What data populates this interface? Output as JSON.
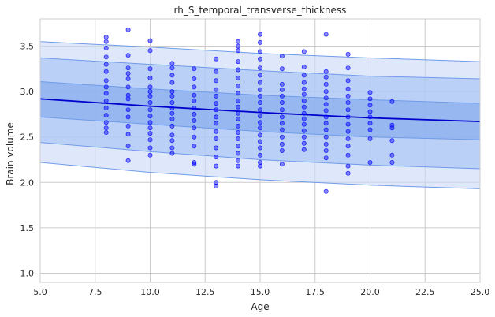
{
  "chart_data": {
    "type": "scatter",
    "title": "rh_S_temporal_transverse_thickness",
    "xlabel": "Age",
    "ylabel": "Brain volume",
    "xlim": [
      5.0,
      25.0
    ],
    "ylim": [
      0.9,
      3.8
    ],
    "x_ticks": [
      "5.0",
      "7.5",
      "10.0",
      "12.5",
      "15.0",
      "17.5",
      "20.0",
      "22.5",
      "25.0"
    ],
    "y_ticks": [
      "1.0",
      "1.5",
      "2.0",
      "2.5",
      "3.0",
      "3.5"
    ],
    "grid": true,
    "colors": {
      "points": "#0000ff",
      "mean_line": "#0000cc",
      "band_outer": "#c9d9f8",
      "band_middle": "#a4c0f4",
      "band_inner": "#7ea6ee",
      "band_edge": "#6f9be8",
      "grid": "#cccccc"
    },
    "mean_line": {
      "x": [
        5.0,
        10.0,
        15.0,
        20.0,
        25.0
      ],
      "y": [
        2.92,
        2.84,
        2.77,
        2.71,
        2.67
      ]
    },
    "bands": [
      {
        "level": "outer",
        "x": [
          5.0,
          10.0,
          15.0,
          20.0,
          25.0
        ],
        "lower": [
          2.22,
          2.11,
          2.03,
          1.97,
          1.93
        ],
        "upper": [
          3.55,
          3.49,
          3.42,
          3.37,
          3.33
        ]
      },
      {
        "level": "middle",
        "x": [
          5.0,
          10.0,
          15.0,
          20.0,
          25.0
        ],
        "lower": [
          2.44,
          2.34,
          2.25,
          2.19,
          2.15
        ],
        "upper": [
          3.37,
          3.3,
          3.23,
          3.17,
          3.14
        ]
      },
      {
        "level": "inner",
        "x": [
          5.0,
          10.0,
          15.0,
          20.0,
          25.0
        ],
        "lower": [
          2.72,
          2.64,
          2.56,
          2.5,
          2.47
        ],
        "upper": [
          3.11,
          3.03,
          2.96,
          2.91,
          2.87
        ]
      }
    ],
    "points": [
      {
        "x": 8,
        "y": 3.6
      },
      {
        "x": 8,
        "y": 3.55
      },
      {
        "x": 8,
        "y": 3.48
      },
      {
        "x": 8,
        "y": 3.38
      },
      {
        "x": 8,
        "y": 3.3
      },
      {
        "x": 8,
        "y": 3.22
      },
      {
        "x": 8,
        "y": 3.12
      },
      {
        "x": 8,
        "y": 3.05
      },
      {
        "x": 8,
        "y": 2.98
      },
      {
        "x": 8,
        "y": 2.9
      },
      {
        "x": 8,
        "y": 2.82
      },
      {
        "x": 8,
        "y": 2.74
      },
      {
        "x": 8,
        "y": 2.66
      },
      {
        "x": 8,
        "y": 2.6
      },
      {
        "x": 8,
        "y": 2.55
      },
      {
        "x": 9,
        "y": 3.68
      },
      {
        "x": 9,
        "y": 3.4
      },
      {
        "x": 9,
        "y": 3.26
      },
      {
        "x": 9,
        "y": 3.2
      },
      {
        "x": 9,
        "y": 3.14
      },
      {
        "x": 9,
        "y": 3.05
      },
      {
        "x": 9,
        "y": 2.96
      },
      {
        "x": 9,
        "y": 2.92
      },
      {
        "x": 9,
        "y": 2.8
      },
      {
        "x": 9,
        "y": 2.72
      },
      {
        "x": 9,
        "y": 2.62
      },
      {
        "x": 9,
        "y": 2.53
      },
      {
        "x": 9,
        "y": 2.4
      },
      {
        "x": 9,
        "y": 2.24
      },
      {
        "x": 10,
        "y": 3.56
      },
      {
        "x": 10,
        "y": 3.45
      },
      {
        "x": 10,
        "y": 3.25
      },
      {
        "x": 10,
        "y": 3.15
      },
      {
        "x": 10,
        "y": 3.05
      },
      {
        "x": 10,
        "y": 3.0
      },
      {
        "x": 10,
        "y": 2.95
      },
      {
        "x": 10,
        "y": 2.88
      },
      {
        "x": 10,
        "y": 2.8
      },
      {
        "x": 10,
        "y": 2.73
      },
      {
        "x": 10,
        "y": 2.66
      },
      {
        "x": 10,
        "y": 2.6
      },
      {
        "x": 10,
        "y": 2.54
      },
      {
        "x": 10,
        "y": 2.47
      },
      {
        "x": 10,
        "y": 2.38
      },
      {
        "x": 10,
        "y": 2.3
      },
      {
        "x": 11,
        "y": 3.31
      },
      {
        "x": 11,
        "y": 3.26
      },
      {
        "x": 11,
        "y": 3.18
      },
      {
        "x": 11,
        "y": 3.1
      },
      {
        "x": 11,
        "y": 3.0
      },
      {
        "x": 11,
        "y": 2.95
      },
      {
        "x": 11,
        "y": 2.88
      },
      {
        "x": 11,
        "y": 2.82
      },
      {
        "x": 11,
        "y": 2.76
      },
      {
        "x": 11,
        "y": 2.7
      },
      {
        "x": 11,
        "y": 2.62
      },
      {
        "x": 11,
        "y": 2.52
      },
      {
        "x": 11,
        "y": 2.46
      },
      {
        "x": 11,
        "y": 2.38
      },
      {
        "x": 11,
        "y": 2.32
      },
      {
        "x": 12,
        "y": 3.25
      },
      {
        "x": 12,
        "y": 3.14
      },
      {
        "x": 12,
        "y": 3.05
      },
      {
        "x": 12,
        "y": 2.96
      },
      {
        "x": 12,
        "y": 2.9
      },
      {
        "x": 12,
        "y": 2.82
      },
      {
        "x": 12,
        "y": 2.75
      },
      {
        "x": 12,
        "y": 2.68
      },
      {
        "x": 12,
        "y": 2.6
      },
      {
        "x": 12,
        "y": 2.5
      },
      {
        "x": 12,
        "y": 2.4
      },
      {
        "x": 12,
        "y": 2.22
      },
      {
        "x": 12,
        "y": 2.2
      },
      {
        "x": 13,
        "y": 3.36
      },
      {
        "x": 13,
        "y": 3.22
      },
      {
        "x": 13,
        "y": 3.12
      },
      {
        "x": 13,
        "y": 3.02
      },
      {
        "x": 13,
        "y": 2.95
      },
      {
        "x": 13,
        "y": 2.87
      },
      {
        "x": 13,
        "y": 2.8
      },
      {
        "x": 13,
        "y": 2.72
      },
      {
        "x": 13,
        "y": 2.65
      },
      {
        "x": 13,
        "y": 2.56
      },
      {
        "x": 13,
        "y": 2.48
      },
      {
        "x": 13,
        "y": 2.38
      },
      {
        "x": 13,
        "y": 2.28
      },
      {
        "x": 13,
        "y": 2.18
      },
      {
        "x": 13,
        "y": 2.0
      },
      {
        "x": 13,
        "y": 1.96
      },
      {
        "x": 14,
        "y": 3.55
      },
      {
        "x": 14,
        "y": 3.5
      },
      {
        "x": 14,
        "y": 3.45
      },
      {
        "x": 14,
        "y": 3.33
      },
      {
        "x": 14,
        "y": 3.24
      },
      {
        "x": 14,
        "y": 3.15
      },
      {
        "x": 14,
        "y": 3.06
      },
      {
        "x": 14,
        "y": 2.98
      },
      {
        "x": 14,
        "y": 2.9
      },
      {
        "x": 14,
        "y": 2.83
      },
      {
        "x": 14,
        "y": 2.76
      },
      {
        "x": 14,
        "y": 2.7
      },
      {
        "x": 14,
        "y": 2.62
      },
      {
        "x": 14,
        "y": 2.55
      },
      {
        "x": 14,
        "y": 2.48
      },
      {
        "x": 14,
        "y": 2.4
      },
      {
        "x": 14,
        "y": 2.32
      },
      {
        "x": 14,
        "y": 2.24
      },
      {
        "x": 14,
        "y": 2.18
      },
      {
        "x": 15,
        "y": 3.63
      },
      {
        "x": 15,
        "y": 3.54
      },
      {
        "x": 15,
        "y": 3.44
      },
      {
        "x": 15,
        "y": 3.36
      },
      {
        "x": 15,
        "y": 3.26
      },
      {
        "x": 15,
        "y": 3.18
      },
      {
        "x": 15,
        "y": 3.1
      },
      {
        "x": 15,
        "y": 3.02
      },
      {
        "x": 15,
        "y": 2.95
      },
      {
        "x": 15,
        "y": 2.88
      },
      {
        "x": 15,
        "y": 2.8
      },
      {
        "x": 15,
        "y": 2.73
      },
      {
        "x": 15,
        "y": 2.66
      },
      {
        "x": 15,
        "y": 2.6
      },
      {
        "x": 15,
        "y": 2.52
      },
      {
        "x": 15,
        "y": 2.45
      },
      {
        "x": 15,
        "y": 2.38
      },
      {
        "x": 15,
        "y": 2.3
      },
      {
        "x": 15,
        "y": 2.22
      },
      {
        "x": 15,
        "y": 2.18
      },
      {
        "x": 16,
        "y": 3.39
      },
      {
        "x": 16,
        "y": 3.25
      },
      {
        "x": 16,
        "y": 3.08
      },
      {
        "x": 16,
        "y": 3.02
      },
      {
        "x": 16,
        "y": 2.95
      },
      {
        "x": 16,
        "y": 2.88
      },
      {
        "x": 16,
        "y": 2.8
      },
      {
        "x": 16,
        "y": 2.72
      },
      {
        "x": 16,
        "y": 2.65
      },
      {
        "x": 16,
        "y": 2.58
      },
      {
        "x": 16,
        "y": 2.5
      },
      {
        "x": 16,
        "y": 2.42
      },
      {
        "x": 16,
        "y": 2.35
      },
      {
        "x": 16,
        "y": 2.2
      },
      {
        "x": 17,
        "y": 3.44
      },
      {
        "x": 17,
        "y": 3.27
      },
      {
        "x": 17,
        "y": 3.18
      },
      {
        "x": 17,
        "y": 3.1
      },
      {
        "x": 17,
        "y": 3.03
      },
      {
        "x": 17,
        "y": 2.97
      },
      {
        "x": 17,
        "y": 2.9
      },
      {
        "x": 17,
        "y": 2.83
      },
      {
        "x": 17,
        "y": 2.76
      },
      {
        "x": 17,
        "y": 2.7
      },
      {
        "x": 17,
        "y": 2.64
      },
      {
        "x": 17,
        "y": 2.57
      },
      {
        "x": 17,
        "y": 2.5
      },
      {
        "x": 17,
        "y": 2.43
      },
      {
        "x": 17,
        "y": 2.36
      },
      {
        "x": 18,
        "y": 3.63
      },
      {
        "x": 18,
        "y": 3.22
      },
      {
        "x": 18,
        "y": 3.16
      },
      {
        "x": 18,
        "y": 3.08
      },
      {
        "x": 18,
        "y": 3.0
      },
      {
        "x": 18,
        "y": 2.93
      },
      {
        "x": 18,
        "y": 2.86
      },
      {
        "x": 18,
        "y": 2.79
      },
      {
        "x": 18,
        "y": 2.72
      },
      {
        "x": 18,
        "y": 2.65
      },
      {
        "x": 18,
        "y": 2.58
      },
      {
        "x": 18,
        "y": 2.5
      },
      {
        "x": 18,
        "y": 2.42
      },
      {
        "x": 18,
        "y": 2.35
      },
      {
        "x": 18,
        "y": 2.27
      },
      {
        "x": 18,
        "y": 1.9
      },
      {
        "x": 19,
        "y": 3.41
      },
      {
        "x": 19,
        "y": 3.26
      },
      {
        "x": 19,
        "y": 3.12
      },
      {
        "x": 19,
        "y": 3.03
      },
      {
        "x": 19,
        "y": 2.95
      },
      {
        "x": 19,
        "y": 2.88
      },
      {
        "x": 19,
        "y": 2.8
      },
      {
        "x": 19,
        "y": 2.72
      },
      {
        "x": 19,
        "y": 2.64
      },
      {
        "x": 19,
        "y": 2.56
      },
      {
        "x": 19,
        "y": 2.48
      },
      {
        "x": 19,
        "y": 2.4
      },
      {
        "x": 19,
        "y": 2.3
      },
      {
        "x": 19,
        "y": 2.18
      },
      {
        "x": 19,
        "y": 2.1
      },
      {
        "x": 20,
        "y": 2.99
      },
      {
        "x": 20,
        "y": 2.92
      },
      {
        "x": 20,
        "y": 2.85
      },
      {
        "x": 20,
        "y": 2.78
      },
      {
        "x": 20,
        "y": 2.72
      },
      {
        "x": 20,
        "y": 2.65
      },
      {
        "x": 20,
        "y": 2.58
      },
      {
        "x": 20,
        "y": 2.48
      },
      {
        "x": 20,
        "y": 2.22
      },
      {
        "x": 21,
        "y": 2.89
      },
      {
        "x": 21,
        "y": 2.63
      },
      {
        "x": 21,
        "y": 2.6
      },
      {
        "x": 21,
        "y": 2.46
      },
      {
        "x": 21,
        "y": 2.3
      },
      {
        "x": 21,
        "y": 2.22
      }
    ]
  }
}
